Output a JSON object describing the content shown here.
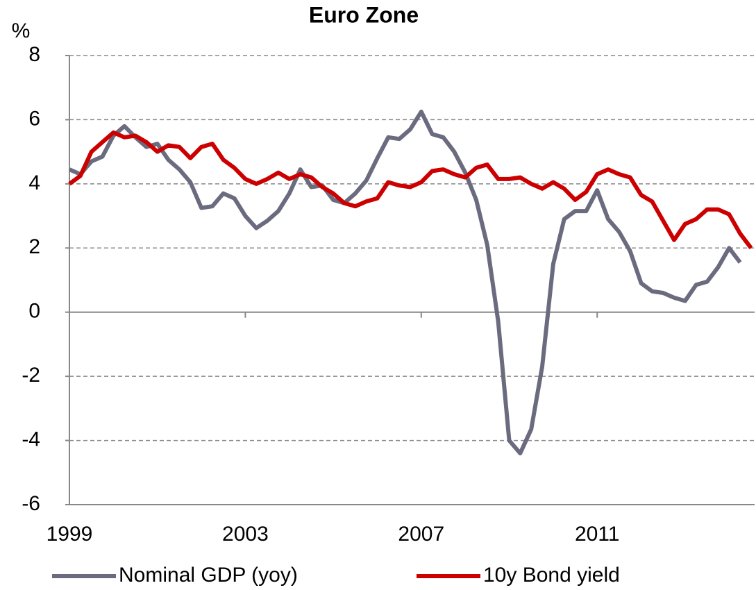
{
  "chart_data": {
    "type": "line",
    "title": "Euro Zone",
    "y_label": "%",
    "x": [
      1999,
      1999.25,
      1999.5,
      1999.75,
      2000,
      2000.25,
      2000.5,
      2000.75,
      2001,
      2001.25,
      2001.5,
      2001.75,
      2002,
      2002.25,
      2002.5,
      2002.75,
      2003,
      2003.25,
      2003.5,
      2003.75,
      2004,
      2004.25,
      2004.5,
      2004.75,
      2005,
      2005.25,
      2005.5,
      2005.75,
      2006,
      2006.25,
      2006.5,
      2006.75,
      2007,
      2007.25,
      2007.5,
      2007.75,
      2008,
      2008.25,
      2008.5,
      2008.75,
      2009,
      2009.25,
      2009.5,
      2009.75,
      2010,
      2010.25,
      2010.5,
      2010.75,
      2011,
      2011.25,
      2011.5,
      2011.75,
      2012,
      2012.25,
      2012.5,
      2012.75,
      2013,
      2013.25,
      2013.5,
      2013.75,
      2014,
      2014.25,
      2014.5
    ],
    "series": [
      {
        "name": "Nominal GDP (yoy)",
        "color": "#6b6b80",
        "values": [
          4.45,
          4.3,
          4.7,
          4.85,
          5.5,
          5.8,
          5.45,
          5.15,
          5.25,
          4.75,
          4.45,
          4.05,
          3.25,
          3.3,
          3.7,
          3.55,
          3.0,
          2.62,
          2.85,
          3.15,
          3.7,
          4.45,
          3.9,
          3.95,
          3.5,
          3.4,
          3.7,
          4.1,
          4.8,
          5.45,
          5.4,
          5.7,
          6.25,
          5.55,
          5.45,
          5.0,
          4.35,
          3.5,
          2.1,
          -0.3,
          -4.0,
          -4.4,
          -3.65,
          -1.7,
          1.5,
          2.9,
          3.15,
          3.15,
          3.8,
          2.9,
          2.5,
          1.9,
          0.9,
          0.65,
          0.6,
          0.45,
          0.35,
          0.85,
          0.95,
          1.4,
          2.0,
          1.55,
          null
        ]
      },
      {
        "name": "10y Bond yield",
        "color": "#cc0000",
        "values": [
          4.0,
          4.25,
          5.0,
          5.3,
          5.6,
          5.45,
          5.5,
          5.3,
          5.0,
          5.2,
          5.15,
          4.8,
          5.15,
          5.25,
          4.75,
          4.5,
          4.15,
          4.0,
          4.15,
          4.35,
          4.15,
          4.3,
          4.2,
          3.9,
          3.7,
          3.4,
          3.3,
          3.45,
          3.55,
          4.05,
          3.95,
          3.9,
          4.05,
          4.4,
          4.45,
          4.3,
          4.2,
          4.5,
          4.6,
          4.15,
          4.15,
          4.2,
          4.0,
          3.85,
          4.05,
          3.85,
          3.5,
          3.75,
          4.3,
          4.45,
          4.3,
          4.2,
          3.65,
          3.45,
          2.85,
          2.25,
          2.75,
          2.9,
          3.2,
          3.2,
          3.05,
          2.45,
          2.0
        ]
      }
    ],
    "xlim": [
      1999,
      2014.58
    ],
    "xticks": [
      1999,
      2003,
      2007,
      2011
    ],
    "ylim": [
      -6,
      8
    ],
    "yticks": [
      -6,
      -4,
      -2,
      0,
      2,
      4,
      6,
      8
    ],
    "grid": true,
    "legend": "bottom"
  }
}
